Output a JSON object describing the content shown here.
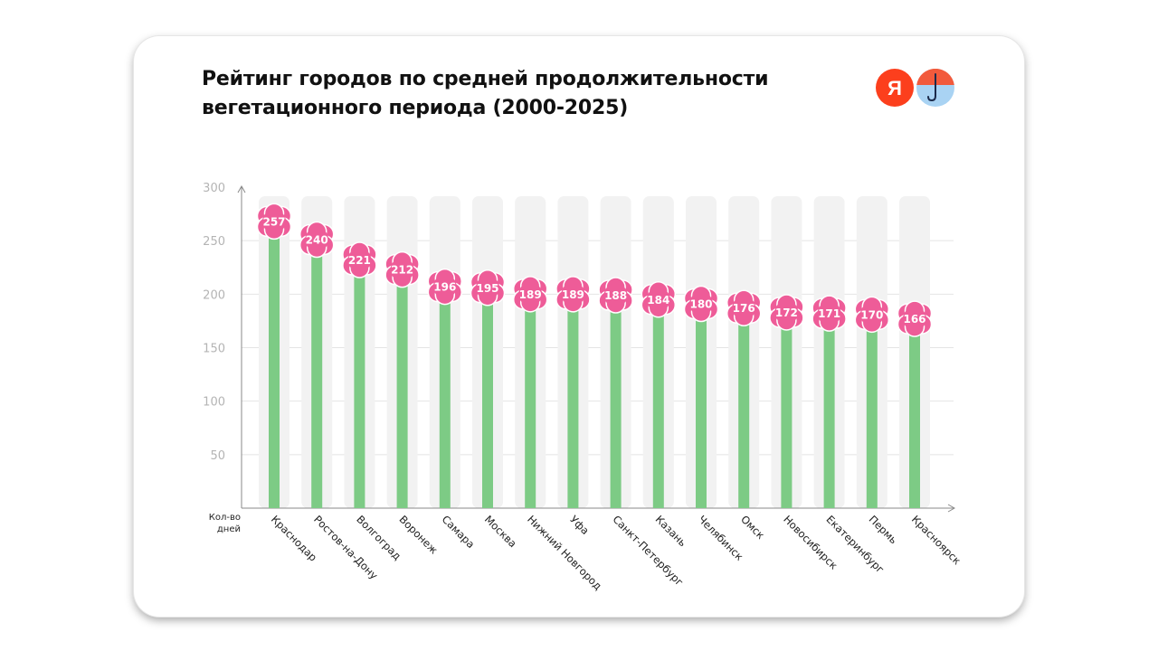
{
  "colors": {
    "bar": "#7dcb85",
    "track": "#f2f2f2",
    "flower": "#ee5c98",
    "grid": "#e4e4e4",
    "axis": "#888888",
    "yandex_red": "#fc3f1d",
    "umbrella_red": "#f25a3c",
    "umbrella_blue": "#a9d3f3"
  },
  "logos": {
    "yandex_letter": "Я"
  },
  "chart_data": {
    "type": "bar",
    "title": "Рейтинг городов по средней продолжительности вегетационного периода (2000-2025)",
    "title_lines": [
      "Рейтинг городов по средней продолжительности",
      "вегетационного периода (2000-2025)"
    ],
    "xlabel": "",
    "ylabel": "Кол-во дней",
    "ylabel_lines": [
      "Кол-во",
      "дней"
    ],
    "ylim": [
      0,
      300
    ],
    "yticks": [
      50,
      100,
      150,
      200,
      250,
      300
    ],
    "grid": true,
    "categories": [
      "Краснодар",
      "Ростов-на-Дону",
      "Волгоград",
      "Воронеж",
      "Самара",
      "Москва",
      "Нижний Новгород",
      "Уфа",
      "Санкт-Петербург",
      "Казань",
      "Челябинск",
      "Омск",
      "Новосибирск",
      "Екатеринбург",
      "Пермь",
      "Красноярск"
    ],
    "values": [
      257,
      240,
      221,
      212,
      196,
      195,
      189,
      189,
      188,
      184,
      180,
      176,
      172,
      171,
      170,
      166
    ]
  }
}
